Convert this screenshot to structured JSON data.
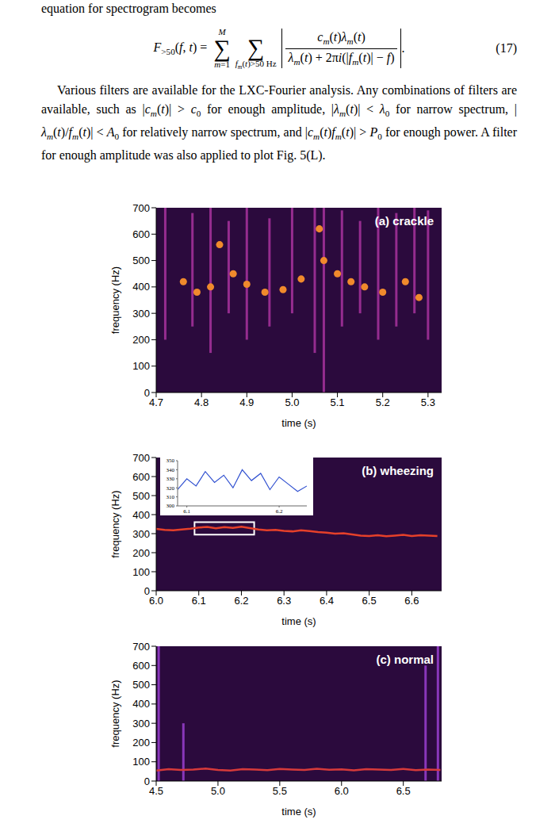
{
  "intro": "equation for spectrogram becomes",
  "equation": {
    "lhs": [
      [
        "F",
        "i"
      ],
      [
        ">50",
        "s"
      ],
      [
        "(",
        ""
      ],
      [
        "f",
        "i"
      ],
      [
        ", ",
        ""
      ],
      [
        "t",
        "i"
      ],
      [
        ") =",
        ""
      ]
    ],
    "sum1": {
      "symbol": "∑",
      "upper": "M",
      "lower": [
        [
          "m",
          "i"
        ],
        [
          "=1",
          ""
        ]
      ]
    },
    "sum2": {
      "symbol": "∑",
      "lower": [
        [
          "f",
          "i"
        ],
        [
          "m",
          "s"
        ],
        [
          "(",
          ""
        ],
        [
          "t",
          "i"
        ],
        [
          ")>50 Hz",
          ""
        ]
      ]
    },
    "numerator": [
      [
        "c",
        "i"
      ],
      [
        "m",
        "s"
      ],
      [
        "(",
        ""
      ],
      [
        "t",
        "i"
      ],
      [
        ")",
        ""
      ],
      [
        "λ",
        "i"
      ],
      [
        "m",
        "s"
      ],
      [
        "(",
        ""
      ],
      [
        "t",
        "i"
      ],
      [
        ")",
        ""
      ]
    ],
    "denominator": [
      [
        "λ",
        "i"
      ],
      [
        "m",
        "s"
      ],
      [
        "(",
        ""
      ],
      [
        "t",
        "i"
      ],
      [
        ") + 2π",
        ""
      ],
      [
        "i",
        "i"
      ],
      [
        "(|",
        ""
      ],
      [
        "f",
        "i"
      ],
      [
        "m",
        "s"
      ],
      [
        "(",
        ""
      ],
      [
        "t",
        "i"
      ],
      [
        ")| − ",
        ""
      ],
      [
        "f",
        "i"
      ],
      [
        ")",
        ""
      ]
    ],
    "end": ".",
    "number": "(17)"
  },
  "paragraph": [
    [
      "Various filters are available for the LXC-Fourier analysis. Any combinations of filters are available, such as |",
      ""
    ],
    [
      "c",
      "i"
    ],
    [
      "m",
      "s"
    ],
    [
      "(",
      ""
    ],
    [
      "t",
      "i"
    ],
    [
      ")| > ",
      ""
    ],
    [
      "c",
      "i"
    ],
    [
      "0",
      "s"
    ],
    [
      " for enough amplitude, |",
      ""
    ],
    [
      "λ",
      "i"
    ],
    [
      "m",
      "s"
    ],
    [
      "(",
      ""
    ],
    [
      "t",
      "i"
    ],
    [
      ")| < ",
      ""
    ],
    [
      "λ",
      "i"
    ],
    [
      "0",
      "s"
    ],
    [
      " for narrow spectrum, |",
      ""
    ],
    [
      "λ",
      "i"
    ],
    [
      "m",
      "s"
    ],
    [
      "(",
      ""
    ],
    [
      "t",
      "i"
    ],
    [
      ")/",
      ""
    ],
    [
      "f",
      "i"
    ],
    [
      "m",
      "s"
    ],
    [
      "(",
      ""
    ],
    [
      "t",
      "i"
    ],
    [
      ")| < ",
      ""
    ],
    [
      "A",
      "i"
    ],
    [
      "0",
      "s"
    ],
    [
      " for relatively narrow spectrum, and |",
      ""
    ],
    [
      "c",
      "i"
    ],
    [
      "m",
      "s"
    ],
    [
      "(",
      ""
    ],
    [
      "t",
      "i"
    ],
    [
      ")",
      ""
    ],
    [
      "f",
      "i"
    ],
    [
      "m",
      "s"
    ],
    [
      "(",
      ""
    ],
    [
      "t",
      "i"
    ],
    [
      ")| > ",
      ""
    ],
    [
      "P",
      "i"
    ],
    [
      "0",
      "s"
    ],
    [
      " for enough power. A filter for enough amplitude was also applied to plot Fig. 5(L).",
      ""
    ]
  ],
  "chart_data": [
    {
      "type": "spectrogram",
      "title": "(a) crackle",
      "xlabel": "time (s)",
      "ylabel": "frequency (Hz)",
      "xlim": [
        4.7,
        5.33
      ],
      "xticks": [
        4.7,
        4.8,
        4.9,
        {
          "value": 5,
          "label": "5.0"
        },
        5.1,
        5.2,
        5.3
      ],
      "ylim": [
        0,
        700
      ],
      "yticks": [
        0,
        100,
        200,
        300,
        400,
        500,
        600,
        700
      ],
      "streaks": {
        "color": "#a8329e",
        "time": [
          4.72,
          4.78,
          4.82,
          4.86,
          4.9,
          4.95,
          5.0,
          5.05,
          5.07,
          5.11,
          5.15,
          5.19,
          5.23,
          5.27,
          5.3
        ],
        "f_low": [
          200,
          250,
          150,
          300,
          200,
          250,
          300,
          150,
          0,
          250,
          300,
          200,
          250,
          300,
          200
        ],
        "f_high": [
          700,
          680,
          700,
          650,
          700,
          660,
          700,
          700,
          700,
          690,
          650,
          700,
          680,
          700,
          690
        ]
      },
      "series": [
        {
          "type": "scatter",
          "marker": "circle",
          "color": "#f08a2c",
          "x": [
            4.76,
            4.79,
            4.82,
            4.84,
            4.87,
            4.9,
            4.94,
            4.98,
            5.02,
            5.06,
            5.07,
            5.1,
            5.13,
            5.16,
            5.2,
            5.25,
            5.28
          ],
          "values": [
            420,
            380,
            400,
            560,
            450,
            410,
            380,
            390,
            430,
            620,
            500,
            450,
            420,
            400,
            380,
            420,
            360
          ]
        }
      ]
    },
    {
      "type": "spectrogram",
      "title": "(b) wheezing",
      "xlabel": "time (s)",
      "ylabel": "frequency (Hz)",
      "xlim": [
        6.0,
        6.67
      ],
      "xticks": [
        {
          "value": 6,
          "label": "6.0"
        },
        6.1,
        6.2,
        6.3,
        6.4,
        6.5,
        6.6
      ],
      "ylim": [
        0,
        700
      ],
      "yticks": [
        0,
        100,
        200,
        300,
        400,
        500,
        600,
        700
      ],
      "box": {
        "x": [
          6.09,
          6.23
        ],
        "y": [
          295,
          360
        ]
      },
      "series": [
        {
          "type": "line",
          "color": "#e5402a",
          "x": [
            6.0,
            6.02,
            6.04,
            6.06,
            6.08,
            6.1,
            6.12,
            6.14,
            6.16,
            6.18,
            6.2,
            6.22,
            6.24,
            6.26,
            6.28,
            6.3,
            6.32,
            6.34,
            6.36,
            6.38,
            6.4,
            6.42,
            6.44,
            6.46,
            6.48,
            6.5,
            6.52,
            6.54,
            6.56,
            6.58,
            6.6,
            6.62,
            6.64,
            6.66
          ],
          "values": [
            325,
            320,
            318,
            322,
            326,
            332,
            335,
            328,
            334,
            330,
            336,
            329,
            322,
            318,
            320,
            315,
            312,
            318,
            314,
            308,
            305,
            300,
            302,
            296,
            290,
            288,
            292,
            286,
            290,
            294,
            288,
            292,
            290,
            288
          ]
        }
      ],
      "inset": {
        "xlim": [
          6.09,
          6.23
        ],
        "xticks": [
          6.1,
          6.2
        ],
        "ylim": [
          300,
          350
        ],
        "yticks": [
          300,
          310,
          320,
          330,
          340,
          350
        ],
        "series": [
          {
            "type": "line",
            "color": "#3050d0",
            "x": [
              6.09,
              6.1,
              6.11,
              6.12,
              6.13,
              6.14,
              6.15,
              6.16,
              6.17,
              6.18,
              6.19,
              6.2,
              6.21,
              6.22,
              6.23
            ],
            "values": [
              318,
              330,
              322,
              338,
              326,
              334,
              320,
              340,
              328,
              336,
              318,
              332,
              324,
              316,
              322
            ]
          }
        ]
      }
    },
    {
      "type": "spectrogram",
      "title": "(c) normal",
      "xlabel": "time (s)",
      "ylabel": "frequency (Hz)",
      "xlim": [
        4.5,
        6.81
      ],
      "xticks": [
        4.5,
        {
          "value": 5,
          "label": "5.0"
        },
        5.5,
        {
          "value": 6,
          "label": "6.0"
        },
        6.5
      ],
      "ylim": [
        0,
        700
      ],
      "yticks": [
        0,
        100,
        200,
        300,
        400,
        500,
        600,
        700
      ],
      "streaks": {
        "color": "#9a3fd0",
        "time": [
          4.52,
          4.72,
          6.68,
          6.78
        ],
        "f_low": [
          0,
          0,
          0,
          0
        ],
        "f_high": [
          700,
          300,
          600,
          700
        ]
      },
      "series": [
        {
          "type": "line",
          "color": "#d63a3a",
          "x": [
            4.5,
            4.6,
            4.7,
            4.8,
            4.9,
            5.0,
            5.1,
            5.2,
            5.3,
            5.4,
            5.5,
            5.6,
            5.7,
            5.8,
            5.9,
            6.0,
            6.1,
            6.2,
            6.3,
            6.4,
            6.5,
            6.6,
            6.7,
            6.8
          ],
          "values": [
            55,
            62,
            58,
            60,
            65,
            58,
            55,
            62,
            60,
            57,
            63,
            60,
            58,
            64,
            59,
            61,
            56,
            62,
            60,
            58,
            63,
            57,
            60,
            58
          ]
        }
      ]
    }
  ]
}
